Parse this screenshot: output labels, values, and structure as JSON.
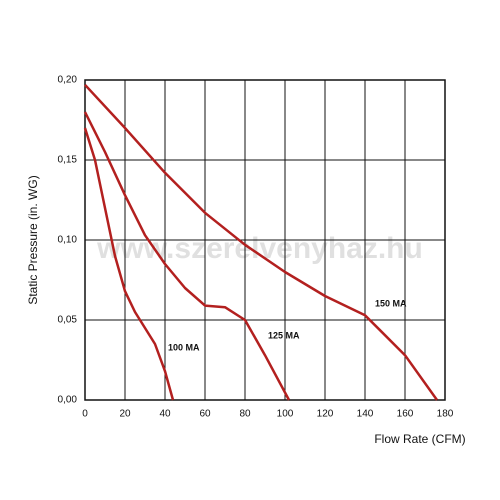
{
  "chart_data": {
    "type": "line",
    "xlabel": "Flow Rate (CFM)",
    "ylabel": "Static Pressure (in. WG)",
    "watermark": "www.szerelvenyhaz.hu",
    "xlim": [
      0,
      180
    ],
    "xticks": [
      0,
      20,
      40,
      60,
      80,
      100,
      120,
      140,
      160,
      180
    ],
    "ylim": [
      0,
      0.2
    ],
    "yticks": [
      {
        "value": 0,
        "label": "0,00"
      },
      {
        "value": 0.05,
        "label": "0,05"
      },
      {
        "value": 0.1,
        "label": "0,10"
      },
      {
        "value": 0.15,
        "label": "0,15"
      },
      {
        "value": 0.2,
        "label": "0,20"
      }
    ],
    "grid": true,
    "series": [
      {
        "name": "150 MA",
        "color": "#b3201f",
        "x": [
          0,
          20,
          40,
          60,
          80,
          100,
          120,
          140,
          160,
          176
        ],
        "values": [
          0.197,
          0.17,
          0.142,
          0.117,
          0.097,
          0.08,
          0.065,
          0.053,
          0.028,
          0
        ]
      },
      {
        "name": "125 MA",
        "color": "#b3201f",
        "x": [
          0,
          10,
          20,
          30,
          40,
          50,
          60,
          70,
          80,
          90,
          102
        ],
        "values": [
          0.18,
          0.155,
          0.128,
          0.103,
          0.085,
          0.07,
          0.059,
          0.058,
          0.05,
          0.028,
          0
        ]
      },
      {
        "name": "100 MA",
        "color": "#b3201f",
        "x": [
          0,
          5,
          10,
          15,
          20,
          25,
          30,
          35,
          40,
          44
        ],
        "values": [
          0.17,
          0.15,
          0.12,
          0.09,
          0.068,
          0.055,
          0.045,
          0.035,
          0.018,
          0
        ]
      }
    ]
  }
}
